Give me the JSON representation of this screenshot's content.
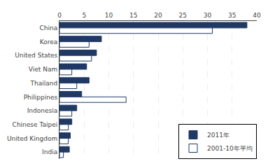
{
  "chart_data": {
    "type": "bar",
    "orientation": "horizontal",
    "categories": [
      "China",
      "Korea",
      "United States",
      "Viet Nam",
      "Thailand",
      "Philippines",
      "Indonesia",
      "Chinese Taipei",
      "United Kingdom",
      "India"
    ],
    "series": [
      {
        "name": "2011年",
        "color": "#1F3864",
        "values": [
          38.0,
          8.5,
          7.5,
          5.5,
          6.0,
          4.5,
          3.5,
          2.5,
          2.2,
          2.0
        ]
      },
      {
        "name": "2001-10年平均",
        "color": "#FFFFFF",
        "values": [
          31.0,
          6.0,
          6.5,
          2.5,
          3.5,
          13.5,
          2.5,
          1.8,
          1.8,
          0.8
        ]
      }
    ],
    "xlim": [
      0,
      40
    ],
    "xticks": [
      0,
      5,
      10,
      15,
      20,
      25,
      30,
      35,
      40
    ],
    "grid": true,
    "legend": "lower right"
  }
}
